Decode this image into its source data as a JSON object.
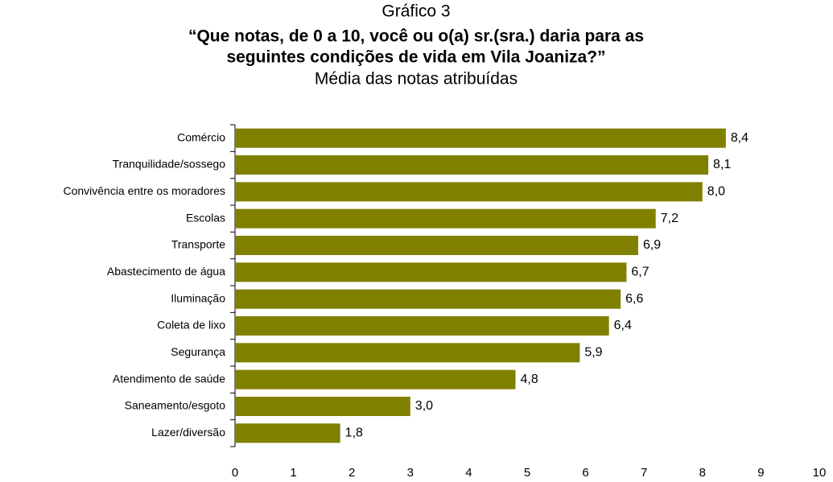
{
  "chart_data": {
    "type": "bar",
    "orientation": "horizontal",
    "supertitle": "Gráfico 3",
    "title": [
      "“Que notas, de 0 a 10, você ou o(a) sr.(sra.) daria para as",
      "seguintes condições de vida em Vila Joaniza?”"
    ],
    "subtitle": "Média das notas atribuídas",
    "categories": [
      "Comércio",
      "Tranquilidade/sossego",
      "Convivência entre os moradores",
      "Escolas",
      "Transporte",
      "Abastecimento de água",
      "Iluminação",
      "Coleta de lixo",
      "Segurança",
      "Atendimento de saúde",
      "Saneamento/esgoto",
      "Lazer/diversão"
    ],
    "values": [
      8.4,
      8.1,
      8.0,
      7.2,
      6.9,
      6.7,
      6.6,
      6.4,
      5.9,
      4.8,
      3.0,
      1.8
    ],
    "value_labels": [
      "8,4",
      "8,1",
      "8,0",
      "7,2",
      "6,9",
      "6,7",
      "6,6",
      "6,4",
      "5,9",
      "4,8",
      "3,0",
      "1,8"
    ],
    "color": "#808000",
    "xlim": [
      0,
      10
    ],
    "xticks": [
      0,
      1,
      2,
      3,
      4,
      5,
      6,
      7,
      8,
      9,
      10
    ],
    "grid": false
  }
}
